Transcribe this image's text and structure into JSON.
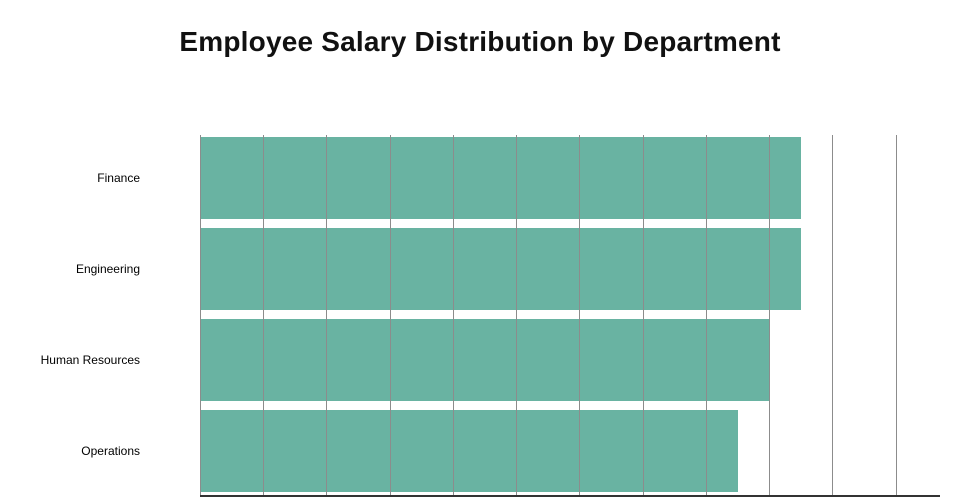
{
  "page": {
    "background": "#ffffff"
  },
  "chart_data": {
    "type": "bar",
    "orientation": "horizontal",
    "title": "Employee Salary Distribution by Department",
    "categories": [
      "Finance",
      "Engineering",
      "Human Resources",
      "Operations"
    ],
    "values": [
      9.5,
      9.5,
      9.0,
      8.5
    ],
    "value_units": "gridline units (x-axis tick labels are cut off below the visible area)",
    "xlim": [
      0,
      11.7
    ],
    "grid": true,
    "legend": "none",
    "bar_color": "#69b3a2",
    "gridline_color": "#8c8c8c",
    "axis_line_color": "#333333"
  }
}
